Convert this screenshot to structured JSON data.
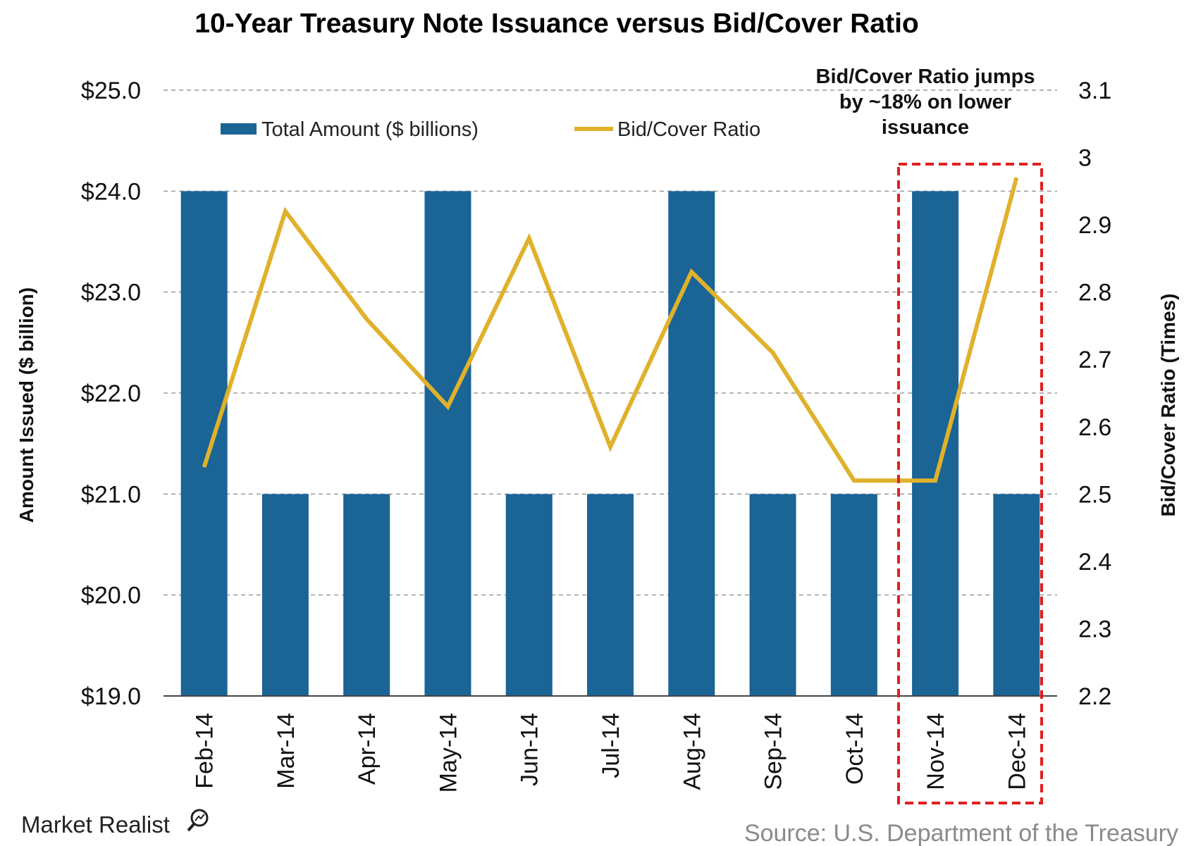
{
  "chart_data": {
    "type": "bar+line",
    "title": "10-Year Treasury Note Issuance versus Bid/Cover Ratio",
    "categories": [
      "Feb-14",
      "Mar-14",
      "Apr-14",
      "May-14",
      "Jun-14",
      "Jul-14",
      "Aug-14",
      "Sep-14",
      "Oct-14",
      "Nov-14",
      "Dec-14"
    ],
    "series": [
      {
        "name": "Total Amount ($ billions)",
        "type": "bar",
        "axis": "left",
        "color": "#1a6496",
        "values": [
          24,
          21,
          21,
          24,
          21,
          21,
          24,
          21,
          21,
          24,
          21
        ]
      },
      {
        "name": "Bid/Cover Ratio",
        "type": "line",
        "axis": "right",
        "color": "#e0b12b",
        "values": [
          2.54,
          2.92,
          2.76,
          2.63,
          2.88,
          2.57,
          2.83,
          2.71,
          2.52,
          2.52,
          2.97
        ]
      }
    ],
    "y_left": {
      "label": "Amount Issued ($ billion)",
      "range": [
        19,
        25
      ],
      "ticks": [
        "$19.0",
        "$20.0",
        "$21.0",
        "$22.0",
        "$23.0",
        "$24.0",
        "$25.0"
      ]
    },
    "y_right": {
      "label": "Bid/Cover Ratio (Times)",
      "range": [
        2.2,
        3.1
      ],
      "ticks": [
        "2.2",
        "2.3",
        "2.4",
        "2.5",
        "2.6",
        "2.7",
        "2.8",
        "2.9",
        "3",
        "3.1"
      ]
    },
    "grid": "horizontal-dashed",
    "legend_position": "top",
    "annotation": {
      "lines": [
        "Bid/Cover Ratio jumps",
        "by ~18% on lower",
        "issuance"
      ],
      "highlight_categories": [
        "Nov-14",
        "Dec-14"
      ],
      "highlight_color": "#e02020"
    }
  },
  "footer": {
    "brand": "Market Realist",
    "source": "Source: U.S. Department of the Treasury"
  }
}
